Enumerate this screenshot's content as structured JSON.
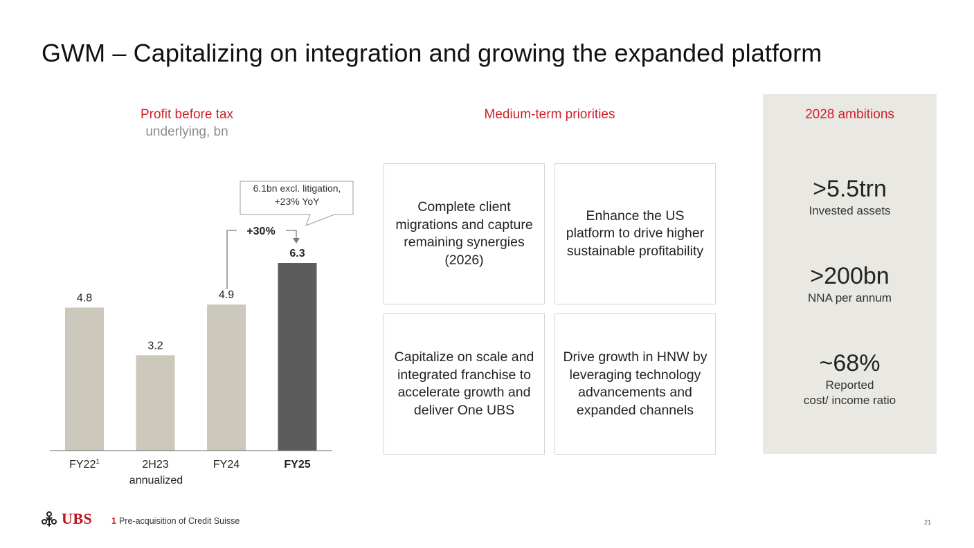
{
  "title": "GWM – Capitalizing on integration and growing the expanded platform",
  "chart_data": {
    "type": "bar",
    "title": "Profit before tax",
    "subtitle": "underlying, bn",
    "categories": [
      {
        "label": "FY22",
        "sup": "1",
        "sub": "",
        "bold": false
      },
      {
        "label": "2H23",
        "sup": "",
        "sub": "annualized",
        "bold": false
      },
      {
        "label": "FY24",
        "sup": "",
        "sub": "",
        "bold": false
      },
      {
        "label": "FY25",
        "sup": "",
        "sub": "",
        "bold": true
      }
    ],
    "values": [
      4.8,
      3.2,
      4.9,
      6.3
    ],
    "value_labels": [
      "4.8",
      "3.2",
      "4.9",
      "6.3"
    ],
    "ylim": [
      0,
      6.3
    ],
    "highlight_index": 3,
    "colors": {
      "bar": "#ccc9bc",
      "highlight": "#5b5c5b",
      "axis": "#8a8a8a"
    },
    "growth_annotation": "+30%",
    "callout": {
      "line1": "6.1bn excl. litigation,",
      "line2": "+23% YoY"
    }
  },
  "priorities": {
    "heading": "Medium-term priorities",
    "items": [
      {
        "text": "Complete client migrations and capture remaining synergies (2026)"
      },
      {
        "text": "Enhance the US platform to drive higher sustainable profitability"
      },
      {
        "text": "Capitalize on scale and integrated franchise to accelerate growth and deliver One UBS"
      },
      {
        "text": "Drive growth in HNW by leveraging technology advancements and expanded channels"
      }
    ]
  },
  "ambitions": {
    "heading": "2028 ambitions",
    "items": [
      {
        "value": ">5.5trn",
        "label": "Invested assets",
        "label2": ""
      },
      {
        "value": ">200bn",
        "label": "NNA per annum",
        "label2": ""
      },
      {
        "value": "~68%",
        "label": "Reported",
        "label2": "cost/ income ratio"
      }
    ]
  },
  "footer": {
    "logo_text": "UBS",
    "footnote_number": "1",
    "footnote_text": "Pre-acquisition of Credit Suisse",
    "page_number": "21"
  },
  "colors": {
    "accent": "#d0202a",
    "panel": "#e9e8e2",
    "box_border": "#d7d5cf"
  }
}
